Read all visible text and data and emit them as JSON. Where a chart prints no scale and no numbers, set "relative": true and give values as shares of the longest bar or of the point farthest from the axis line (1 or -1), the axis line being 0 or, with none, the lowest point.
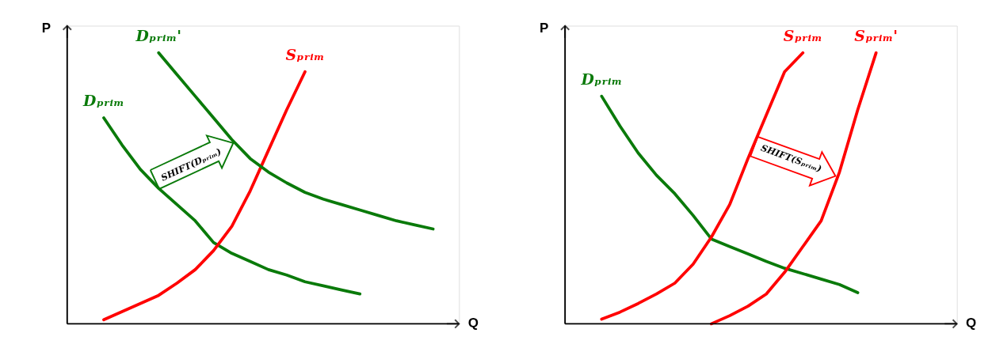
{
  "chart_data": [
    {
      "type": "line",
      "relative": true,
      "xlabel": "Q",
      "ylabel": "P",
      "line_style": "solid",
      "categories": [
        null,
        null,
        null,
        null,
        null,
        null,
        null,
        null,
        null,
        null,
        null,
        null,
        null,
        null,
        null,
        null,
        null,
        null,
        null,
        null
      ],
      "annotations": [
        "SHIFT(Dₚᵣᵢₘ)"
      ],
      "series": [
        {
          "name": "Dₚᵣᵢₘ",
          "color": "#0a7a0a",
          "values": [
            null,
            0.76,
            0.66,
            0.57,
            0.5,
            0.44,
            0.38,
            0.3,
            0.26,
            0.23,
            0.2,
            0.18,
            0.155,
            0.14,
            0.125,
            0.11,
            null,
            null,
            null,
            null
          ]
        },
        {
          "name": "Sₚᵣᵢₘ",
          "color": "#ff0000",
          "values": [
            null,
            0.015,
            0.045,
            0.075,
            0.105,
            0.15,
            0.2,
            0.27,
            0.36,
            0.49,
            0.64,
            0.79,
            0.93,
            null,
            null,
            null,
            null,
            null,
            null,
            null
          ]
        },
        {
          "name": "Dₚᵣᵢₘ'",
          "color": "#0a7a0a",
          "values": [
            null,
            null,
            null,
            null,
            1.0,
            0.92,
            0.84,
            0.76,
            0.68,
            0.61,
            0.56,
            0.52,
            0.485,
            0.46,
            0.44,
            0.42,
            0.4,
            0.38,
            0.365,
            0.35
          ]
        }
      ]
    },
    {
      "type": "line",
      "relative": true,
      "xlabel": "Q",
      "ylabel": "P",
      "line_style": "solid",
      "categories": [
        null,
        null,
        null,
        null,
        null,
        null,
        null,
        null,
        null,
        null,
        null,
        null,
        null,
        null,
        null,
        null,
        null,
        null,
        null,
        null
      ],
      "annotations": [
        "SHIFT(Sₚᵣᵢₘ)"
      ],
      "series": [
        {
          "name": "Dₚᵣᵢₘ",
          "color": "#0a7a0a",
          "values": [
            null,
            0.84,
            0.73,
            0.63,
            0.548,
            0.48,
            0.4,
            0.313,
            0.285,
            0.258,
            0.23,
            0.205,
            0.185,
            0.165,
            0.145,
            0.115,
            null,
            null,
            null,
            null
          ]
        },
        {
          "name": "Sₚᵣᵢₘ",
          "color": "#ff0000",
          "values": [
            null,
            0.017,
            0.043,
            0.075,
            0.11,
            0.15,
            0.22,
            0.32,
            0.44,
            0.61,
            0.77,
            0.93,
            1.0,
            null,
            null,
            null,
            null,
            null,
            null,
            null
          ]
        },
        {
          "name": "Sₚᵣᵢₘ'",
          "color": "#ff0000",
          "values": [
            null,
            null,
            null,
            null,
            null,
            null,
            null,
            0.0,
            0.03,
            0.065,
            0.11,
            0.19,
            0.285,
            0.38,
            0.56,
            0.79,
            1.0,
            null,
            null,
            null
          ]
        }
      ]
    }
  ]
}
